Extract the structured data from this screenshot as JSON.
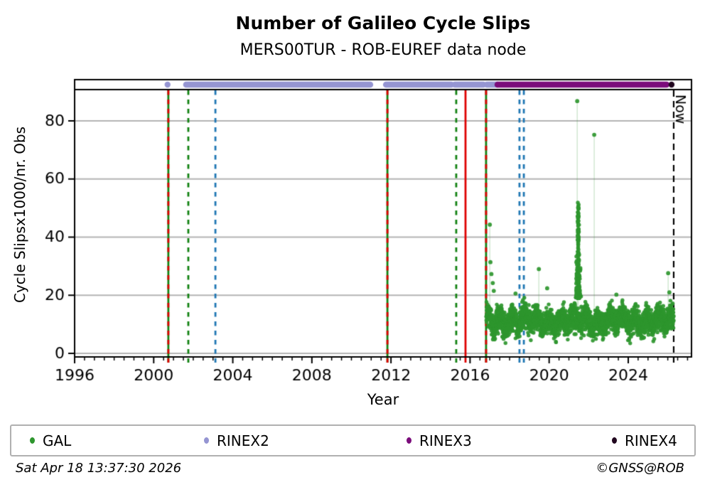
{
  "title": "Number of Galileo Cycle Slips",
  "subtitle": "MERS00TUR - ROB-EUREF data node",
  "footer": {
    "timestamp": "Sat Apr 18 13:37:30 2026",
    "credit": "©GNSS@ROB"
  },
  "legend": [
    {
      "label": "GAL",
      "color": "#2e962e"
    },
    {
      "label": "RINEX2",
      "color": "#9595d2"
    },
    {
      "label": "RINEX3",
      "color": "#7b0c7b"
    },
    {
      "label": "RINEX4",
      "color": "#21071f"
    }
  ],
  "chart_data": {
    "type": "scatter",
    "title": "Number of Galileo Cycle Slips",
    "subtitle": "MERS00TUR - ROB-EUREF data node",
    "xlabel": "Year",
    "ylabel": "Cycle Slipsx1000/nr. Obs",
    "xlim": [
      1996,
      2027.2
    ],
    "ylim": [
      0,
      91
    ],
    "xticks": [
      1996,
      2000,
      2004,
      2008,
      2012,
      2016,
      2020,
      2024
    ],
    "x_minor_step": 0.5,
    "yticks": [
      0,
      20,
      40,
      60,
      80
    ],
    "grid": "horizontal-only",
    "grid_color": "#b4b4b4",
    "now": {
      "year": 2026.3,
      "label": "Now",
      "color": "#000000"
    },
    "availability_bands": [
      {
        "name": "RINEX2",
        "color": "#9595d2",
        "segments": [
          [
            2000.69,
            2000.71
          ],
          [
            2001.64,
            2010.95
          ],
          [
            2011.75,
            2015.05
          ],
          [
            2015.23,
            2016.67
          ],
          [
            2016.85,
            2017.39
          ]
        ]
      },
      {
        "name": "RINEX3",
        "color": "#7b0c7b",
        "segments": [
          [
            2017.39,
            2025.94
          ]
        ]
      },
      {
        "name": "RINEX4",
        "color": "#21071f",
        "segments": [
          [
            2026.17,
            2026.21
          ]
        ]
      }
    ],
    "event_lines": [
      {
        "year": 2000.74,
        "style": "solid",
        "color": "#128212"
      },
      {
        "year": 2000.74,
        "style": "dashed",
        "color": "#dd0000"
      },
      {
        "year": 2001.75,
        "style": "dashed",
        "color": "#128212"
      },
      {
        "year": 2003.12,
        "style": "dashed",
        "color": "#1f77b4"
      },
      {
        "year": 2011.82,
        "style": "solid",
        "color": "#128212"
      },
      {
        "year": 2011.82,
        "style": "dashed",
        "color": "#dd0000"
      },
      {
        "year": 2015.3,
        "style": "dashed",
        "color": "#128212"
      },
      {
        "year": 2015.77,
        "style": "solid",
        "color": "#dd0000"
      },
      {
        "year": 2016.81,
        "style": "solid",
        "color": "#128212"
      },
      {
        "year": 2016.81,
        "style": "dashed",
        "color": "#dd0000"
      },
      {
        "year": 2018.5,
        "style": "dashed",
        "color": "#1f77b4"
      },
      {
        "year": 2018.72,
        "style": "dashed",
        "color": "#1f77b4"
      },
      {
        "year": 2026.3,
        "style": "dashed",
        "color": "#000000",
        "label": "Now"
      }
    ],
    "gal_series": {
      "name": "GAL",
      "color": "#2e962e",
      "marker_radius": 2.7,
      "marker_alpha": 0.92,
      "band": {
        "start": 2016.82,
        "end": 2026.3,
        "step": 0.0036,
        "base": 11.2,
        "wave1_amp": 1.7,
        "wave1_period": 0.62,
        "wave2_amp": 0.9,
        "wave2_period": 2.3,
        "sd": 2.1,
        "min": 3.5,
        "max": 19.4,
        "seed": 1234
      },
      "plume": {
        "center": 2021.47,
        "halfwidth": 0.16,
        "core_halfwidth": 0.05,
        "count": 250,
        "vmin": 19,
        "vmax": 52,
        "seed": 77
      },
      "outliers": [
        [
          2017.0,
          44.3
        ],
        [
          2017.03,
          31.4
        ],
        [
          2017.08,
          27.3
        ],
        [
          2017.15,
          24.2
        ],
        [
          2017.2,
          21.5
        ],
        [
          2018.3,
          20.6
        ],
        [
          2019.48,
          29.0
        ],
        [
          2019.9,
          22.4
        ],
        [
          2021.42,
          86.8
        ],
        [
          2021.45,
          40.4
        ],
        [
          2021.47,
          47.3
        ],
        [
          2022.28,
          75.2
        ],
        [
          2023.4,
          20.2
        ],
        [
          2026.02,
          27.6
        ],
        [
          2026.08,
          21.0
        ]
      ],
      "stems": [
        [
          2017.0,
          44.3
        ],
        [
          2019.48,
          29.0
        ],
        [
          2021.42,
          86.8
        ],
        [
          2021.47,
          47.3
        ],
        [
          2022.28,
          75.2
        ],
        [
          2026.02,
          27.6
        ]
      ],
      "stem_color": "rgba(46,150,46,0.25)"
    }
  }
}
